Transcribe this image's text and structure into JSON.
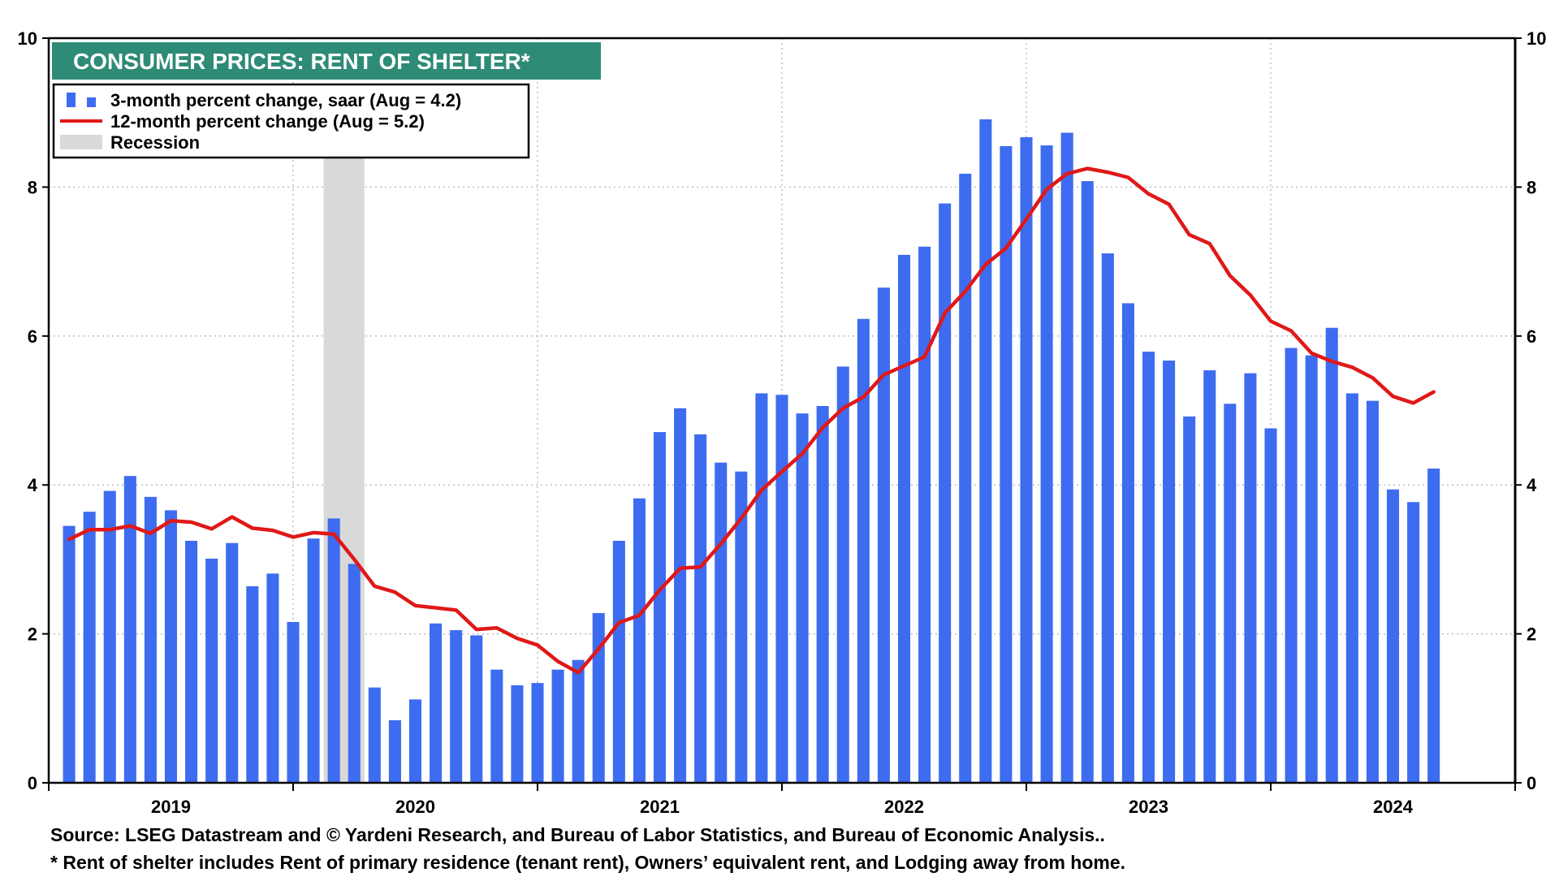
{
  "colors": {
    "bars": "#3d6cf0",
    "line": "#e01818",
    "recession": "#d9d9d9",
    "title_bg": "#2e8b75",
    "title_text": "#ffffff",
    "grid": "#bdbdbd"
  },
  "chart_data": {
    "type": "bar",
    "title": "CONSUMER PRICES: RENT OF SHELTER*",
    "ylim": [
      0,
      10
    ],
    "yticks": [
      "0",
      "2",
      "4",
      "6",
      "8",
      "10"
    ],
    "x_start": "2018-12",
    "x_end": "2024-12",
    "years": [
      "2019",
      "2020",
      "2021",
      "2022",
      "2023",
      "2024"
    ],
    "legend": {
      "bars_label": "3-month percent change, saar (Aug = 4.2)",
      "line_label": "12-month percent change (Aug = 5.2)",
      "recession_label": "Recession"
    },
    "recession": {
      "start": "2020-02",
      "end": "2020-04"
    },
    "series": [
      {
        "name": "3-month percent change, saar",
        "type": "bar",
        "start": "2019-01",
        "values": [
          3.45,
          3.64,
          3.92,
          4.12,
          3.84,
          3.66,
          3.25,
          3.01,
          3.22,
          2.64,
          2.81,
          2.16,
          3.28,
          3.55,
          2.94,
          1.28,
          0.84,
          1.12,
          2.14,
          2.05,
          1.98,
          1.52,
          1.31,
          1.34,
          1.52,
          1.65,
          2.28,
          3.25,
          3.82,
          4.71,
          5.03,
          4.68,
          4.3,
          4.18,
          5.23,
          5.21,
          4.96,
          5.06,
          5.59,
          6.23,
          6.65,
          7.09,
          7.2,
          7.78,
          8.18,
          8.91,
          8.55,
          8.67,
          8.56,
          8.73,
          8.08,
          7.11,
          6.44,
          5.79,
          5.67,
          4.92,
          5.54,
          5.09,
          5.5,
          4.76,
          5.84,
          5.74,
          6.11,
          5.23,
          5.13,
          3.94,
          3.77,
          4.22
        ]
      },
      {
        "name": "12-month percent change",
        "type": "line",
        "start": "2019-01",
        "values": [
          3.27,
          3.4,
          3.4,
          3.45,
          3.35,
          3.52,
          3.5,
          3.41,
          3.57,
          3.42,
          3.39,
          3.3,
          3.36,
          3.34,
          3.0,
          2.64,
          2.56,
          2.38,
          2.35,
          2.32,
          2.06,
          2.08,
          1.94,
          1.85,
          1.63,
          1.48,
          1.8,
          2.15,
          2.25,
          2.59,
          2.88,
          2.9,
          3.21,
          3.55,
          3.93,
          4.18,
          4.42,
          4.77,
          5.03,
          5.18,
          5.48,
          5.6,
          5.72,
          6.31,
          6.6,
          6.96,
          7.18,
          7.57,
          7.97,
          8.18,
          8.25,
          8.2,
          8.13,
          7.91,
          7.77,
          7.36,
          7.24,
          6.81,
          6.55,
          6.2,
          6.07,
          5.77,
          5.66,
          5.58,
          5.44,
          5.19,
          5.1,
          5.25
        ]
      }
    ]
  },
  "footer": {
    "source": "Source: LSEG Datastream and © Yardeni Research, and Bureau of Labor Statistics, and Bureau of Economic Analysis..",
    "note": "* Rent of shelter includes Rent of primary residence (tenant rent), Owners’ equivalent rent, and Lodging away from home."
  }
}
